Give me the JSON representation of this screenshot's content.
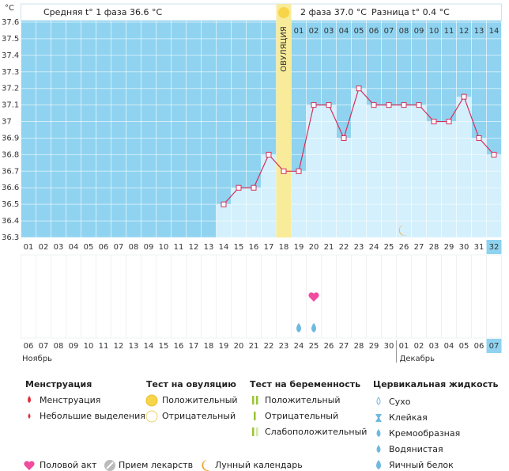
{
  "chart_data": {
    "type": "line",
    "y_label": "°C",
    "header": {
      "phase1": "Средняя t° 1 фаза 36.6 °C",
      "phase2": "2 фаза 37.0 °C",
      "difference": "Разница t° 0.4 °C"
    },
    "categories": [
      "01",
      "02",
      "03",
      "04",
      "05",
      "06",
      "07",
      "08",
      "09",
      "10",
      "11",
      "12",
      "13",
      "14",
      "15",
      "16",
      "17",
      "18",
      "19",
      "20",
      "21",
      "22",
      "23",
      "24",
      "25",
      "26",
      "27",
      "28",
      "29",
      "30",
      "31",
      "32"
    ],
    "dates": [
      "06",
      "07",
      "08",
      "09",
      "10",
      "11",
      "12",
      "13",
      "14",
      "15",
      "16",
      "17",
      "18",
      "19",
      "20",
      "21",
      "22",
      "23",
      "24",
      "25",
      "26",
      "27",
      "28",
      "29",
      "30",
      "01",
      "02",
      "03",
      "04",
      "05",
      "06",
      "07"
    ],
    "red_dates": [
      0,
      6,
      7,
      13,
      14,
      20,
      21,
      27,
      28
    ],
    "months": [
      "Ноябрь",
      "Декабрь"
    ],
    "values": [
      null,
      null,
      null,
      null,
      null,
      null,
      null,
      null,
      null,
      null,
      null,
      null,
      null,
      36.5,
      36.6,
      36.6,
      36.8,
      36.7,
      36.7,
      37.1,
      37.1,
      36.9,
      37.2,
      37.1,
      37.1,
      37.1,
      37.1,
      37.0,
      37.0,
      37.15,
      36.9,
      36.8
    ],
    "ylim": [
      36.3,
      37.6
    ],
    "yticks": [
      36.3,
      36.4,
      36.5,
      36.6,
      36.7,
      36.8,
      36.9,
      37,
      37.1,
      37.2,
      37.3,
      37.4,
      37.5,
      37.6
    ],
    "ovulation_day": "18",
    "ovulation_label": "ОВУЛЯЦИЯ",
    "post_ovulation_labels": [
      "01",
      "02",
      "03",
      "04",
      "05",
      "06",
      "07",
      "08",
      "09",
      "10",
      "11",
      "12",
      "13",
      "14"
    ],
    "highlight_day": "32",
    "intercourse_days": [
      "20"
    ],
    "watery_days": [
      "19",
      "20"
    ],
    "lunar_days": [
      "26"
    ],
    "color": "#d4305c",
    "grid": true
  },
  "legend": {
    "groups": [
      {
        "title": "Менструация",
        "items": [
          "Менструация",
          "Небольшие выделения"
        ]
      },
      {
        "title": "Тест на овуляцию",
        "items": [
          "Положительный",
          "Отрицательный"
        ]
      },
      {
        "title": "Тест на беременность",
        "items": [
          "Положительный",
          "Отрицательный",
          "Слабоположительный"
        ]
      },
      {
        "title": "Цервикальная жидкость",
        "items": [
          "Сухо",
          "Клейкая",
          "Кремообразная",
          "Водянистая",
          "Яичный белок"
        ]
      }
    ],
    "extras": [
      "Половой акт",
      "Прием лекарств",
      "Лунный календарь"
    ]
  }
}
